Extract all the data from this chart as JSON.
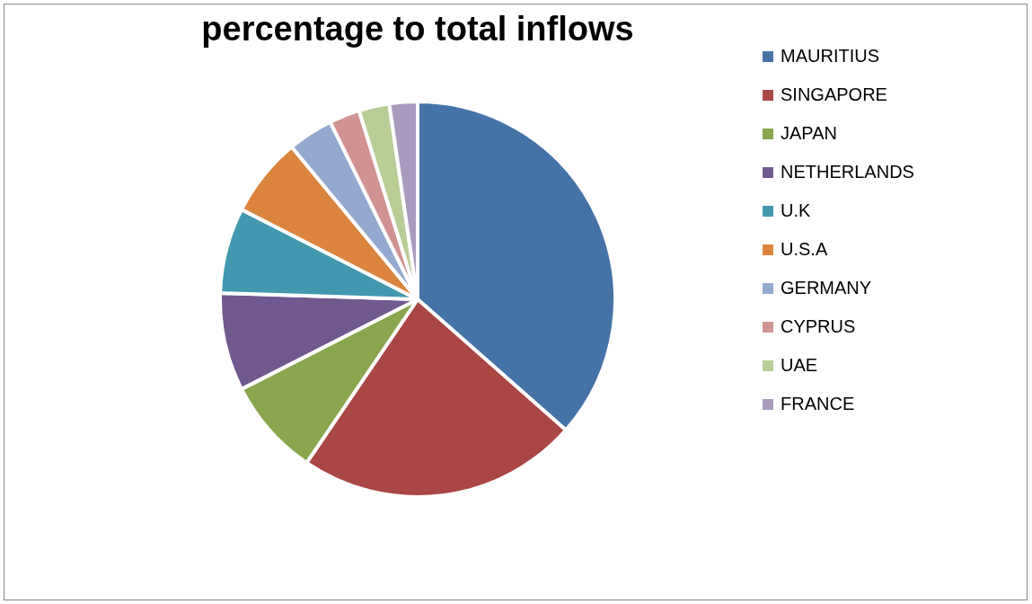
{
  "chart_data": {
    "type": "pie",
    "title": "percentage to total inflows",
    "categories": [
      "MAURITIUS",
      "SINGAPORE",
      "JAPAN",
      "NETHERLANDS",
      "U.K",
      "U.S.A",
      "GERMANY",
      "CYPRUS",
      "UAE",
      "FRANCE"
    ],
    "values": [
      36.5,
      23,
      8,
      8,
      7,
      6.5,
      3.7,
      2.5,
      2.5,
      2.3
    ],
    "colors": [
      "#4572a7",
      "#aa4643",
      "#89a54e",
      "#71588f",
      "#4198af",
      "#db843d",
      "#93a9cf",
      "#d19392",
      "#b9cd96",
      "#a99bbd"
    ],
    "legend": "right"
  }
}
